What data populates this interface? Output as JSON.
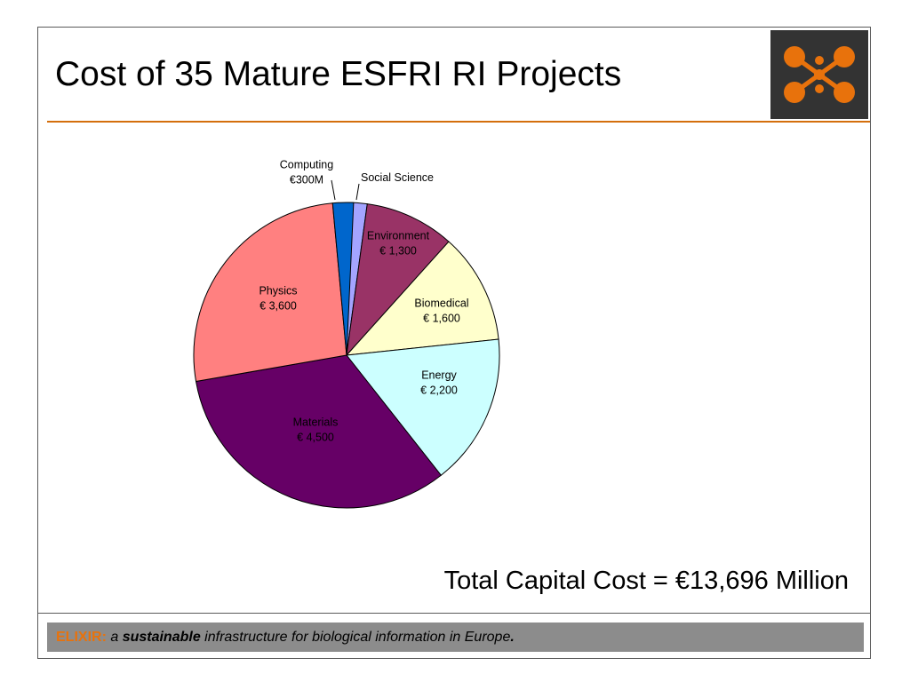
{
  "slide": {
    "title": "Cost of 35 Mature ESFRI RI Projects",
    "total_cost": "Total Capital Cost = €13,696 Million",
    "footer": {
      "brand": "ELIXIR:",
      "part1": " a ",
      "emphasis": "sustainable",
      "part2": " infrastructure for biological information in Europe",
      "end": "."
    }
  },
  "logo": {
    "icon": "elixir-network-icon",
    "background": "#333333",
    "accent": "#e8720c"
  },
  "chart_data": {
    "type": "pie",
    "total": 13696,
    "start_angle_deg": 0,
    "direction": "clockwise",
    "slices": [
      {
        "name": "Social Science",
        "label_lines": [
          "Social Science"
        ],
        "value": 296,
        "color": "#a4a4ff",
        "label_outside": true
      },
      {
        "name": "Environment",
        "label_lines": [
          "Environment",
          "€ 1,300"
        ],
        "value": 1300,
        "color": "#993366",
        "label_color": "#ffffff"
      },
      {
        "name": "Biomedical",
        "label_lines": [
          "Biomedical",
          "€ 1,600"
        ],
        "value": 1600,
        "color": "#ffffcc"
      },
      {
        "name": "Energy",
        "label_lines": [
          "Energy",
          "€ 2,200"
        ],
        "value": 2200,
        "color": "#ccffff"
      },
      {
        "name": "Materials",
        "label_lines": [
          "Materials",
          "€ 4,500"
        ],
        "value": 4500,
        "color": "#660066",
        "label_color": "#ffffff"
      },
      {
        "name": "Physics",
        "label_lines": [
          "Physics",
          "€ 3,600"
        ],
        "value": 3600,
        "color": "#ff8080"
      },
      {
        "name": "Computing",
        "label_lines": [
          "Computing",
          "€300M"
        ],
        "value": 300,
        "color": "#0066cc",
        "label_outside": true
      }
    ]
  }
}
